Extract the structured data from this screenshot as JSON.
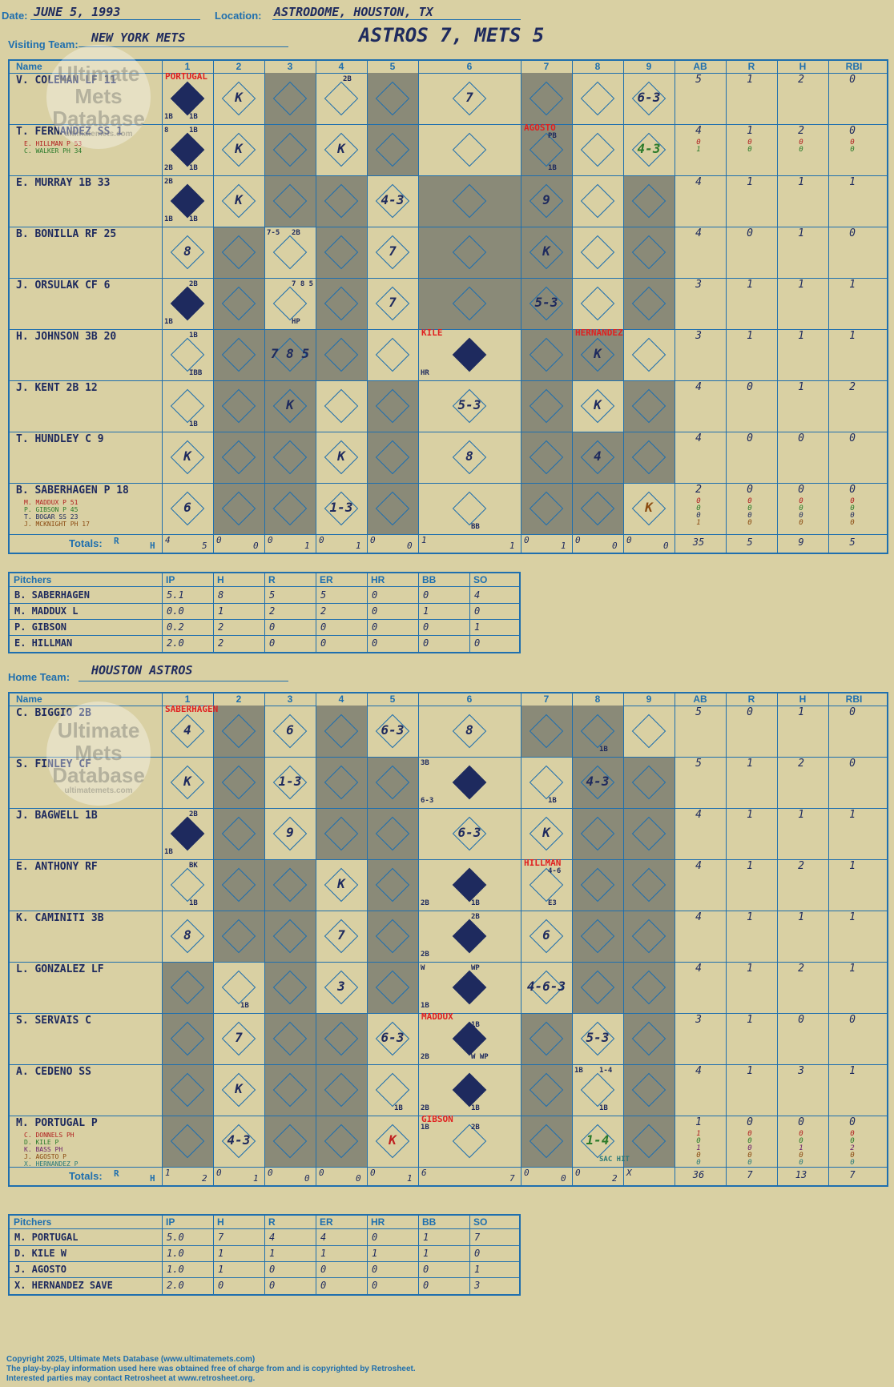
{
  "header": {
    "date_label": "Date:",
    "date": "JUNE 5, 1993",
    "location_label": "Location:",
    "location": "ASTRODOME, HOUSTON, TX",
    "score": "ASTROS 7, METS 5",
    "visiting_label": "Visiting Team:",
    "visiting_team": "NEW YORK METS",
    "home_label": "Home Team:",
    "home_team": "HOUSTON ASTROS"
  },
  "watermark": {
    "line1": "Ultimate",
    "line2": "Mets",
    "line3": "Database",
    "url": "ultimatemets.com"
  },
  "columns": {
    "name": "Name",
    "innings": [
      "1",
      "2",
      "3",
      "4",
      "5",
      "6",
      "7",
      "8",
      "9"
    ],
    "stats": [
      "AB",
      "R",
      "H",
      "RBI"
    ],
    "totals": "Totals:",
    "r": "R",
    "h": "H"
  },
  "visiting": {
    "players": [
      {
        "name": "V. COLEMAN LF  11",
        "subs": [],
        "stats": [
          [
            "5"
          ],
          [
            "1"
          ],
          [
            "2"
          ],
          [
            "0"
          ]
        ]
      },
      {
        "name": "T. FERNANDEZ SS  1",
        "subs": [
          {
            "t": "E. HILLMAN P  53",
            "c": "#b02020"
          },
          {
            "t": "C. WALKER PH  34",
            "c": "#2a7a2a"
          }
        ],
        "stats": [
          [
            "4",
            "0",
            "1"
          ],
          [
            "1",
            "0",
            "0"
          ],
          [
            "2",
            "0",
            "0"
          ],
          [
            "0",
            "0",
            "0"
          ]
        ]
      },
      {
        "name": "E. MURRAY 1B  33",
        "subs": [],
        "stats": [
          [
            "4"
          ],
          [
            "1"
          ],
          [
            "1"
          ],
          [
            "1"
          ]
        ]
      },
      {
        "name": "B. BONILLA RF  25",
        "subs": [],
        "stats": [
          [
            "4"
          ],
          [
            "0"
          ],
          [
            "1"
          ],
          [
            "0"
          ]
        ]
      },
      {
        "name": "J. ORSULAK CF  6",
        "subs": [],
        "stats": [
          [
            "3"
          ],
          [
            "1"
          ],
          [
            "1"
          ],
          [
            "1"
          ]
        ]
      },
      {
        "name": "H. JOHNSON 3B  20",
        "subs": [],
        "stats": [
          [
            "3"
          ],
          [
            "1"
          ],
          [
            "1"
          ],
          [
            "1"
          ]
        ]
      },
      {
        "name": "J. KENT 2B  12",
        "subs": [],
        "stats": [
          [
            "4"
          ],
          [
            "0"
          ],
          [
            "1"
          ],
          [
            "2"
          ]
        ]
      },
      {
        "name": "T. HUNDLEY C  9",
        "subs": [],
        "stats": [
          [
            "4"
          ],
          [
            "0"
          ],
          [
            "0"
          ],
          [
            "0"
          ]
        ]
      },
      {
        "name": "B. SABERHAGEN P  18",
        "subs": [
          {
            "t": "M. MADDUX P  51",
            "c": "#b02020"
          },
          {
            "t": "P. GIBSON P  45",
            "c": "#2a7a2a"
          },
          {
            "t": "T. BOGAR SS  23",
            "c": "#1e2a5e"
          },
          {
            "t": "J. MCKNIGHT PH  17",
            "c": "#8a4a10"
          }
        ],
        "stats": [
          [
            "2",
            "0",
            "0",
            "0",
            "1"
          ],
          [
            "0",
            "0",
            "0",
            "0",
            "0"
          ],
          [
            "0",
            "0",
            "0",
            "0",
            "0"
          ],
          [
            "0",
            "0",
            "0",
            "0",
            "0"
          ]
        ]
      }
    ],
    "plays": [
      {
        "r": 0,
        "c": 0,
        "t": "",
        "f": true,
        "n": [
          "PORTUGAL"
        ],
        "tl": "",
        "bl": "1B",
        "br": "1B"
      },
      {
        "r": 0,
        "c": 1,
        "t": "K"
      },
      {
        "r": 0,
        "c": 3,
        "t": "",
        "tr": "2B"
      },
      {
        "r": 0,
        "c": 5,
        "t": "7"
      },
      {
        "r": 0,
        "c": 8,
        "t": "6-3"
      },
      {
        "r": 1,
        "c": 0,
        "t": "",
        "f": true,
        "tl": "8",
        "tr": "1B",
        "bl": "2B",
        "br": "1B"
      },
      {
        "r": 1,
        "c": 1,
        "t": "K"
      },
      {
        "r": 1,
        "c": 3,
        "t": "K"
      },
      {
        "r": 1,
        "c": 6,
        "t": "",
        "n": [
          "AGOSTO"
        ],
        "tr": "PB",
        "br": "1B"
      },
      {
        "r": 1,
        "c": 8,
        "t": "4-3",
        "g": true
      },
      {
        "r": 2,
        "c": 0,
        "t": "",
        "f": true,
        "tl": "2B",
        "bl": "1B",
        "br": "1B"
      },
      {
        "r": 2,
        "c": 1,
        "t": "K"
      },
      {
        "r": 2,
        "c": 4,
        "t": "4-3"
      },
      {
        "r": 2,
        "c": 6,
        "t": "9"
      },
      {
        "r": 3,
        "c": 0,
        "t": "8"
      },
      {
        "r": 3,
        "c": 2,
        "t": "",
        "tl": "7-5",
        "tr": "2B"
      },
      {
        "r": 3,
        "c": 4,
        "t": "7"
      },
      {
        "r": 3,
        "c": 6,
        "t": "K"
      },
      {
        "r": 4,
        "c": 0,
        "t": "",
        "f": true,
        "tr": "2B",
        "bl": "1B"
      },
      {
        "r": 4,
        "c": 2,
        "t": "",
        "tr": "7 8 5",
        "br": "HP"
      },
      {
        "r": 4,
        "c": 4,
        "t": "7"
      },
      {
        "r": 4,
        "c": 6,
        "t": "5-3"
      },
      {
        "r": 5,
        "c": 0,
        "t": "",
        "tr": "1B",
        "br": "IBB"
      },
      {
        "r": 5,
        "c": 2,
        "t": "7 8 5"
      },
      {
        "r": 5,
        "c": 5,
        "t": "",
        "f": true,
        "n": [
          "KILE"
        ],
        "bl": "HR"
      },
      {
        "r": 5,
        "c": 7,
        "t": "K",
        "n": [
          "HERNANDEZ"
        ]
      },
      {
        "r": 6,
        "c": 0,
        "t": "",
        "br": "1B"
      },
      {
        "r": 6,
        "c": 2,
        "t": "K"
      },
      {
        "r": 6,
        "c": 5,
        "t": "5-3"
      },
      {
        "r": 6,
        "c": 7,
        "t": "K"
      },
      {
        "r": 7,
        "c": 0,
        "t": "K"
      },
      {
        "r": 7,
        "c": 3,
        "t": "K"
      },
      {
        "r": 7,
        "c": 5,
        "t": "8"
      },
      {
        "r": 7,
        "c": 7,
        "t": "4"
      },
      {
        "r": 8,
        "c": 0,
        "t": "6"
      },
      {
        "r": 8,
        "c": 3,
        "t": "1-3"
      },
      {
        "r": 8,
        "c": 5,
        "t": "",
        "br": "BB"
      },
      {
        "r": 8,
        "c": 8,
        "t": "K",
        "b": true
      }
    ],
    "totals": [
      [
        "4",
        "5"
      ],
      [
        "0",
        "0"
      ],
      [
        "0",
        "1"
      ],
      [
        "0",
        "1"
      ],
      [
        "0",
        "0"
      ],
      [
        "1",
        "1"
      ],
      [
        "0",
        "1"
      ],
      [
        "0",
        "0"
      ],
      [
        "0",
        "0"
      ]
    ],
    "totals_stats": [
      "35",
      "5",
      "9",
      "5"
    ],
    "pitchers": {
      "headers": [
        "Pitchers",
        "IP",
        "H",
        "R",
        "ER",
        "HR",
        "BB",
        "SO"
      ],
      "rows": [
        [
          "B. SABERHAGEN",
          "5.1",
          "8",
          "5",
          "5",
          "0",
          "0",
          "4"
        ],
        [
          "M. MADDUX  L",
          "0.0",
          "1",
          "2",
          "2",
          "0",
          "1",
          "0"
        ],
        [
          "P. GIBSON",
          "0.2",
          "2",
          "0",
          "0",
          "0",
          "0",
          "1"
        ],
        [
          "E. HILLMAN",
          "2.0",
          "2",
          "0",
          "0",
          "0",
          "0",
          "0"
        ]
      ]
    }
  },
  "home": {
    "players": [
      {
        "name": "C. BIGGIO 2B",
        "subs": [],
        "stats": [
          [
            "5"
          ],
          [
            "0"
          ],
          [
            "1"
          ],
          [
            "0"
          ]
        ]
      },
      {
        "name": "S. FINLEY CF",
        "subs": [],
        "stats": [
          [
            "5"
          ],
          [
            "1"
          ],
          [
            "2"
          ],
          [
            "0"
          ]
        ]
      },
      {
        "name": "J. BAGWELL 1B",
        "subs": [],
        "stats": [
          [
            "4"
          ],
          [
            "1"
          ],
          [
            "1"
          ],
          [
            "1"
          ]
        ]
      },
      {
        "name": "E. ANTHONY RF",
        "subs": [],
        "stats": [
          [
            "4"
          ],
          [
            "1"
          ],
          [
            "2"
          ],
          [
            "1"
          ]
        ]
      },
      {
        "name": "K. CAMINITI 3B",
        "subs": [],
        "stats": [
          [
            "4"
          ],
          [
            "1"
          ],
          [
            "1"
          ],
          [
            "1"
          ]
        ]
      },
      {
        "name": "L. GONZALEZ LF",
        "subs": [],
        "stats": [
          [
            "4"
          ],
          [
            "1"
          ],
          [
            "2"
          ],
          [
            "1"
          ]
        ]
      },
      {
        "name": "S. SERVAIS C",
        "subs": [],
        "stats": [
          [
            "3"
          ],
          [
            "1"
          ],
          [
            "0"
          ],
          [
            "0"
          ]
        ]
      },
      {
        "name": "A. CEDENO SS",
        "subs": [],
        "stats": [
          [
            "4"
          ],
          [
            "1"
          ],
          [
            "3"
          ],
          [
            "1"
          ]
        ]
      },
      {
        "name": "M. PORTUGAL P",
        "subs": [
          {
            "t": "C. DONNELS PH",
            "c": "#b02020"
          },
          {
            "t": "D. KILE P",
            "c": "#2a7a2a"
          },
          {
            "t": "K. BASS PH",
            "c": "#6a1e6a"
          },
          {
            "t": "J. AGOSTO P",
            "c": "#8a4a10"
          },
          {
            "t": "X. HERNANDEZ P",
            "c": "#2a7a7a"
          }
        ],
        "stats": [
          [
            "1",
            "1",
            "0",
            "1",
            "0",
            "0"
          ],
          [
            "0",
            "0",
            "0",
            "0",
            "0",
            "0"
          ],
          [
            "0",
            "0",
            "0",
            "1",
            "0",
            "0"
          ],
          [
            "0",
            "0",
            "0",
            "2",
            "0",
            "0"
          ]
        ]
      }
    ],
    "plays": [
      {
        "r": 0,
        "c": 0,
        "t": "4",
        "n": [
          "SABERHAGEN"
        ]
      },
      {
        "r": 0,
        "c": 2,
        "t": "6"
      },
      {
        "r": 0,
        "c": 4,
        "t": "6-3"
      },
      {
        "r": 0,
        "c": 5,
        "t": "8"
      },
      {
        "r": 0,
        "c": 7,
        "t": "",
        "br": "1B"
      },
      {
        "r": 1,
        "c": 0,
        "t": "K"
      },
      {
        "r": 1,
        "c": 2,
        "t": "1-3"
      },
      {
        "r": 1,
        "c": 5,
        "t": "",
        "f": true,
        "tl": "3B",
        "bl": "6-3"
      },
      {
        "r": 1,
        "c": 6,
        "t": "",
        "br": "1B"
      },
      {
        "r": 1,
        "c": 7,
        "t": "4-3"
      },
      {
        "r": 2,
        "c": 0,
        "t": "",
        "f": true,
        "tr": "2B",
        "bl": "1B"
      },
      {
        "r": 2,
        "c": 2,
        "t": "9"
      },
      {
        "r": 2,
        "c": 5,
        "t": "6-3"
      },
      {
        "r": 2,
        "c": 6,
        "t": "K"
      },
      {
        "r": 3,
        "c": 0,
        "t": "",
        "tr": "BK",
        "br": "1B"
      },
      {
        "r": 3,
        "c": 3,
        "t": "K"
      },
      {
        "r": 3,
        "c": 5,
        "t": "",
        "f": true,
        "bl": "2B",
        "br": "1B"
      },
      {
        "r": 3,
        "c": 6,
        "t": "",
        "n": [
          "HILLMAN"
        ],
        "tr": "4-6",
        "br": "E3"
      },
      {
        "r": 4,
        "c": 0,
        "t": "8"
      },
      {
        "r": 4,
        "c": 3,
        "t": "7"
      },
      {
        "r": 4,
        "c": 5,
        "t": "",
        "f": true,
        "tr": "2B",
        "bl": "2B"
      },
      {
        "r": 4,
        "c": 6,
        "t": "6"
      },
      {
        "r": 5,
        "c": 1,
        "t": "",
        "br": "1B"
      },
      {
        "r": 5,
        "c": 3,
        "t": "3"
      },
      {
        "r": 5,
        "c": 5,
        "t": "",
        "f": true,
        "tl": "W",
        "tr": "WP",
        "bl": "1B"
      },
      {
        "r": 5,
        "c": 6,
        "t": "4-6-3"
      },
      {
        "r": 6,
        "c": 1,
        "t": "7"
      },
      {
        "r": 6,
        "c": 4,
        "t": "6-3"
      },
      {
        "r": 6,
        "c": 5,
        "t": "",
        "f": true,
        "n": [
          "MADDUX"
        ],
        "tr": "1B",
        "bl": "2B",
        "br": "W WP"
      },
      {
        "r": 6,
        "c": 7,
        "t": "5-3"
      },
      {
        "r": 7,
        "c": 1,
        "t": "K"
      },
      {
        "r": 7,
        "c": 4,
        "t": "",
        "br": "1B"
      },
      {
        "r": 7,
        "c": 5,
        "t": "",
        "f": true,
        "bl": "2B",
        "br": "1B"
      },
      {
        "r": 7,
        "c": 7,
        "t": "",
        "tl": "1B",
        "tr": "1-4",
        "br": "1B"
      },
      {
        "r": 8,
        "c": 1,
        "t": "4-3"
      },
      {
        "r": 8,
        "c": 4,
        "t": "K",
        "rd": true
      },
      {
        "r": 8,
        "c": 5,
        "t": "",
        "n": [
          "GIBSON"
        ],
        "tl": "1B",
        "tr": "2B"
      },
      {
        "r": 8,
        "c": 7,
        "t": "1-4",
        "g": true,
        "br": "SAC HIT"
      }
    ],
    "totals": [
      [
        "1",
        "2"
      ],
      [
        "0",
        "1"
      ],
      [
        "0",
        "0"
      ],
      [
        "0",
        "0"
      ],
      [
        "0",
        "1"
      ],
      [
        "6",
        "7"
      ],
      [
        "0",
        "0"
      ],
      [
        "0",
        "2"
      ],
      [
        "X",
        ""
      ]
    ],
    "totals_stats": [
      "36",
      "7",
      "13",
      "7"
    ],
    "pitchers": {
      "headers": [
        "Pitchers",
        "IP",
        "H",
        "R",
        "ER",
        "HR",
        "BB",
        "SO"
      ],
      "rows": [
        [
          "M. PORTUGAL",
          "5.0",
          "7",
          "4",
          "4",
          "0",
          "1",
          "7"
        ],
        [
          "D. KILE  W",
          "1.0",
          "1",
          "1",
          "1",
          "1",
          "1",
          "0"
        ],
        [
          "J. AGOSTO",
          "1.0",
          "1",
          "0",
          "0",
          "0",
          "0",
          "1"
        ],
        [
          "X. HERNANDEZ  SAVE",
          "2.0",
          "0",
          "0",
          "0",
          "0",
          "0",
          "3"
        ]
      ]
    }
  },
  "footer": {
    "line1": "Copyright 2025, Ultimate Mets Database (www.ultimatemets.com)",
    "line2": "The play-by-play information used here was obtained free of charge from and is copyrighted by Retrosheet.",
    "line3": "Interested parties may contact Retrosheet at www.retrosheet.org."
  },
  "colors": {
    "paper": "#d9d0a3",
    "gridline": "#1f6fae",
    "ink": "#1e2a5e",
    "shade": "#8a8a78",
    "note": "#e02020"
  }
}
